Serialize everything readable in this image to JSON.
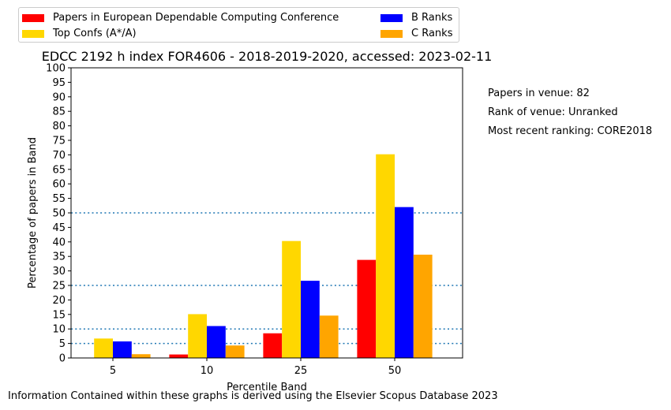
{
  "chart_data": {
    "type": "bar",
    "title": "EDCC 2192 h index FOR4606 - 2018-2019-2020, accessed: 2023-02-11",
    "xlabel": "Percentile Band",
    "ylabel": "Percentage of papers in Band",
    "categories": [
      "5",
      "10",
      "25",
      "50"
    ],
    "ylim": [
      0,
      100
    ],
    "yticks": [
      "0",
      "5",
      "10",
      "15",
      "20",
      "25",
      "30",
      "35",
      "40",
      "45",
      "50",
      "55",
      "60",
      "65",
      "70",
      "75",
      "80",
      "85",
      "90",
      "95",
      "100"
    ],
    "reference_lines": [
      5,
      10,
      25,
      50
    ],
    "legend_position": "top-left, above plot",
    "series": [
      {
        "name": "Papers in European Dependable Computing Conference",
        "color": "#ff0000",
        "values": [
          0,
          1.2,
          8.5,
          33.8
        ]
      },
      {
        "name": "Top Confs (A*/A)",
        "color": "#ffd700",
        "values": [
          6.7,
          15.1,
          40.3,
          70.2
        ]
      },
      {
        "name": "B Ranks",
        "color": "#0000ff",
        "values": [
          5.7,
          11.0,
          26.6,
          52.0
        ]
      },
      {
        "name": "C Ranks",
        "color": "#ffa500",
        "values": [
          1.3,
          4.3,
          14.6,
          35.6
        ]
      }
    ]
  },
  "info": {
    "papers_in_venue": "Papers in venue: 82",
    "rank_of_venue": "Rank of venue: Unranked",
    "most_recent_ranking": "Most recent ranking: CORE2018"
  },
  "footer": "Information Contained within these graphs is derived using the Elsevier Scopus Database 2023"
}
